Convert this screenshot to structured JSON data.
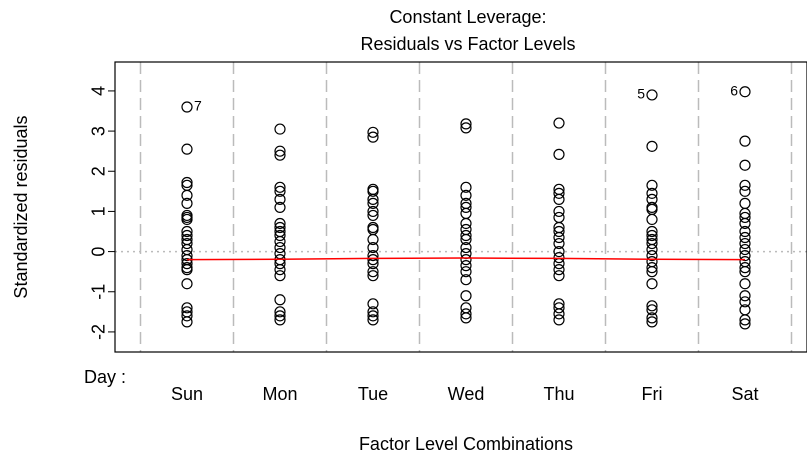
{
  "chart_data": {
    "type": "scatter",
    "title": [
      "Constant Leverage:",
      "Residuals vs Factor Levels"
    ],
    "y_label": "Standardized residuals",
    "x_label": "Factor Level Combinations",
    "factor_label": "Day :",
    "categories": [
      "Sun",
      "Mon",
      "Tue",
      "Wed",
      "Thu",
      "Fri",
      "Sat"
    ],
    "groups": [
      [
        3.6,
        2.55,
        1.72,
        1.65,
        1.4,
        1.2,
        0.9,
        0.85,
        0.8,
        0.5,
        0.4,
        0.3,
        0.2,
        0.05,
        -0.1,
        -0.2,
        -0.3,
        -0.4,
        -0.45,
        -0.8,
        -1.4,
        -1.5,
        -1.6,
        -1.75
      ],
      [
        3.05,
        2.5,
        2.4,
        1.6,
        1.5,
        1.3,
        1.1,
        0.7,
        0.6,
        0.5,
        0.4,
        0.25,
        0.1,
        -0.05,
        -0.2,
        -0.3,
        -0.45,
        -0.6,
        -1.2,
        -1.5,
        -1.6,
        -1.7
      ],
      [
        2.97,
        2.85,
        1.55,
        1.5,
        1.3,
        1.2,
        1.0,
        0.9,
        0.6,
        0.55,
        0.3,
        0.1,
        -0.1,
        -0.2,
        -0.3,
        -0.5,
        -0.6,
        -1.3,
        -1.5,
        -1.6,
        -1.7
      ],
      [
        3.18,
        3.08,
        1.6,
        1.4,
        1.2,
        1.1,
        0.95,
        0.7,
        0.55,
        0.4,
        0.3,
        0.1,
        -0.05,
        -0.2,
        -0.35,
        -0.5,
        -0.7,
        -1.1,
        -1.4,
        -1.55,
        -1.65
      ],
      [
        3.2,
        2.42,
        1.55,
        1.45,
        1.3,
        1.0,
        0.85,
        0.6,
        0.5,
        0.35,
        0.2,
        0.0,
        -0.15,
        -0.3,
        -0.45,
        -0.6,
        -1.3,
        -1.4,
        -1.55,
        -1.7
      ],
      [
        3.9,
        2.62,
        1.65,
        1.45,
        1.3,
        1.1,
        1.05,
        0.8,
        0.5,
        0.4,
        0.3,
        0.2,
        0.05,
        -0.1,
        -0.25,
        -0.4,
        -0.5,
        -0.8,
        -1.35,
        -1.45,
        -1.65,
        -1.75
      ],
      [
        3.98,
        2.75,
        2.15,
        1.65,
        1.5,
        1.2,
        0.95,
        0.85,
        0.7,
        0.5,
        0.35,
        0.2,
        0.05,
        -0.1,
        -0.25,
        -0.4,
        -0.5,
        -0.8,
        -1.1,
        -1.25,
        -1.45,
        -1.7,
        -1.8
      ]
    ],
    "point_color": "#000000",
    "smooth": {
      "color": "#ff0000",
      "values": [
        -0.2,
        -0.19,
        -0.17,
        -0.16,
        -0.17,
        -0.19,
        -0.2
      ]
    },
    "hline": 0,
    "annotations": [
      {
        "text": "7",
        "category": 0,
        "y": 3.6,
        "side": "right"
      },
      {
        "text": "5",
        "category": 5,
        "y": 3.9,
        "side": "left"
      },
      {
        "text": "6",
        "category": 6,
        "y": 3.98,
        "side": "left"
      }
    ],
    "ylim": [
      -2.5,
      4.72
    ],
    "yticks": [
      -2,
      -1,
      0,
      1,
      2,
      3,
      4
    ]
  }
}
